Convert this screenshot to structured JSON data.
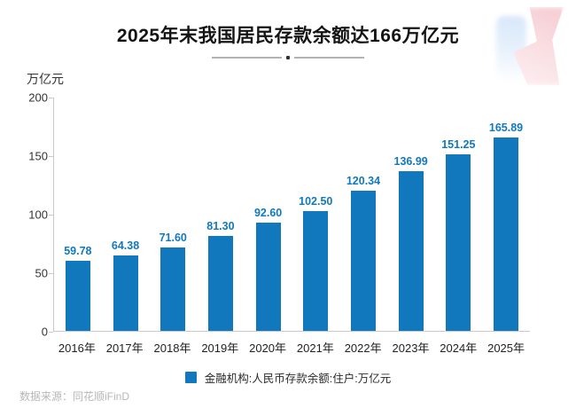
{
  "header": {
    "title": "2025年末我国居民存款余额达166万亿元"
  },
  "chart_data": {
    "type": "bar",
    "title": "2025年末我国居民存款余额达166万亿元",
    "ylabel": "万亿元",
    "xlabel": "",
    "categories": [
      "2016年",
      "2017年",
      "2018年",
      "2019年",
      "2020年",
      "2021年",
      "2022年",
      "2023年",
      "2024年",
      "2025年"
    ],
    "values": [
      59.78,
      64.38,
      71.6,
      81.3,
      92.6,
      102.5,
      120.34,
      136.99,
      151.25,
      165.89
    ],
    "ylim": [
      0,
      200
    ],
    "yticks": [
      0,
      50,
      100,
      150,
      200
    ],
    "grid": false,
    "legend": "金融机构:人民币存款余额:住户:万亿元",
    "legend_position": "bottom",
    "bar_color": "#1278BE",
    "value_label_color": "#1278BE"
  },
  "footer": {
    "source": "数据来源：同花顺iFinD"
  }
}
